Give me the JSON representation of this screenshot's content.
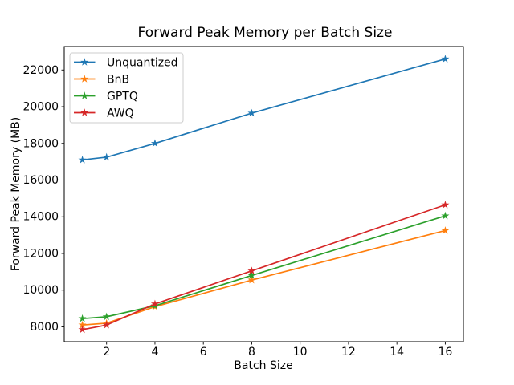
{
  "chart_data": {
    "type": "line",
    "title": "Forward Peak Memory per Batch Size",
    "xlabel": "Batch Size",
    "ylabel": "Forward Peak Memory (MB)",
    "x": [
      1,
      2,
      4,
      8,
      16
    ],
    "series": [
      {
        "name": "Unquantized",
        "color": "#1f77b4",
        "values": [
          17100,
          17250,
          18000,
          19650,
          22600
        ]
      },
      {
        "name": "BnB",
        "color": "#ff7f0e",
        "values": [
          8100,
          8200,
          9100,
          10550,
          13250
        ]
      },
      {
        "name": "GPTQ",
        "color": "#2ca02c",
        "values": [
          8450,
          8550,
          9150,
          10800,
          14050
        ]
      },
      {
        "name": "AWQ",
        "color": "#d62728",
        "values": [
          7850,
          8100,
          9250,
          11050,
          14650
        ]
      }
    ],
    "x_ticks": [
      2,
      4,
      6,
      8,
      10,
      12,
      14,
      16
    ],
    "y_ticks": [
      8000,
      10000,
      12000,
      14000,
      16000,
      18000,
      20000,
      22000
    ],
    "xlim": [
      0.25,
      16.75
    ],
    "ylim": [
      7190,
      23280
    ],
    "grid": false,
    "marker": "star",
    "legend_position": "upper-left",
    "legend_frame_color": "#cccccc",
    "axis_color": "#000000",
    "background": "#ffffff"
  }
}
